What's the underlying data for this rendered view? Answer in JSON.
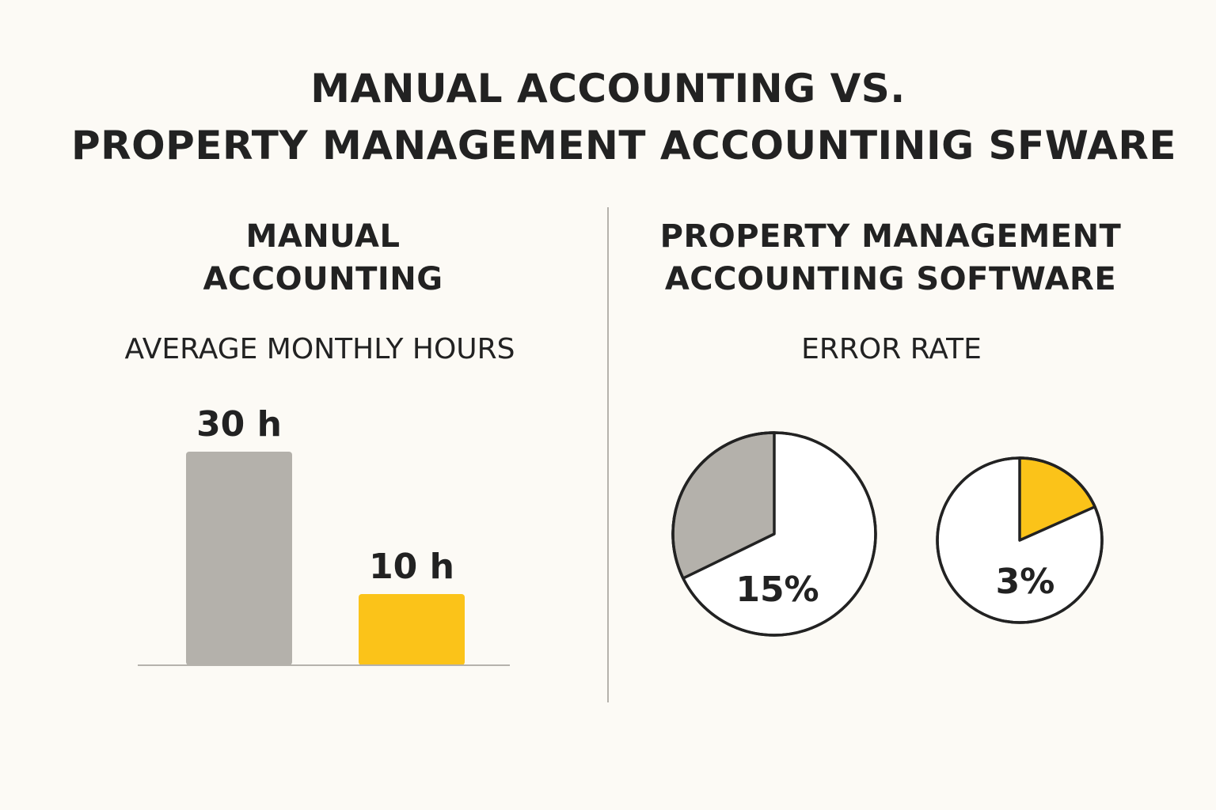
{
  "title": {
    "line1": "MANUAL ACCOUNTING VS.",
    "line2": "PROPERTY MANAGEMENT ACCOUNTINIG SFWARE"
  },
  "left_panel": {
    "heading_line1": "MANUAL",
    "heading_line2": "ACCOUNTING",
    "metric": "AVERAGE MONTHLY HOURS"
  },
  "right_panel": {
    "heading_line1": "PROPERTY MANAGEMENT",
    "heading_line2": "ACCOUNTING SOFTWARE",
    "metric": "ERROR RATE"
  },
  "colors": {
    "background": "#fcfaf5",
    "manual": "#b4b1ab",
    "software": "#fbc319",
    "text": "#222222",
    "divider": "#b5b2ac",
    "outline": "#222222"
  },
  "chart_data": [
    {
      "type": "bar",
      "title": "AVERAGE MONTHLY HOURS",
      "categories": [
        "",
        ""
      ],
      "values": [
        30,
        10
      ],
      "value_labels": [
        "30 h",
        "10 h"
      ],
      "colors": [
        "#b4b1ab",
        "#fbc319"
      ],
      "ylim": [
        0,
        30
      ],
      "grid": false
    },
    {
      "type": "pie",
      "title": "ERROR RATE",
      "charts": [
        {
          "label": "15%",
          "value": 15,
          "highlight_color": "#b4b1ab"
        },
        {
          "label": "3%",
          "value": 3,
          "highlight_color": "#fbc319"
        }
      ]
    }
  ]
}
